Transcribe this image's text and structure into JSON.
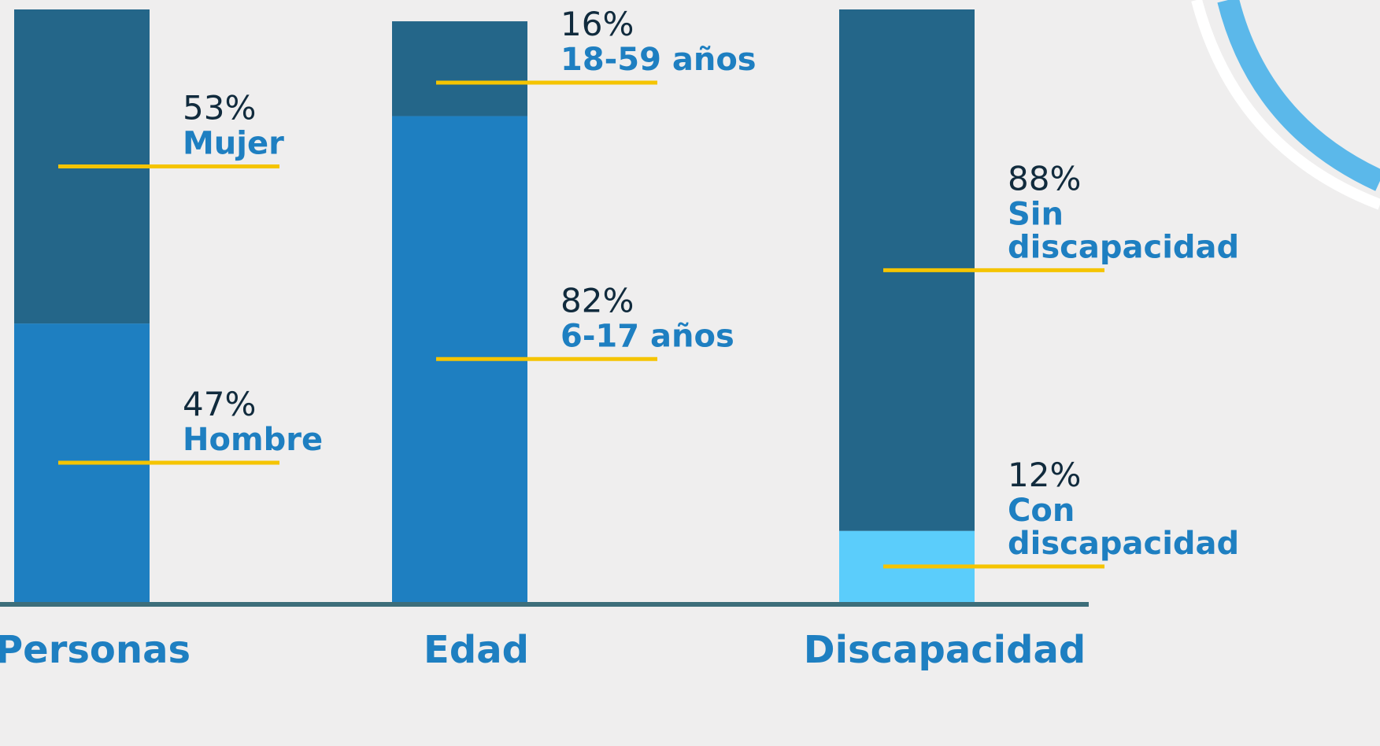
{
  "chart_data": {
    "type": "stacked-bar",
    "categories": [
      "Personas",
      "Edad",
      "Discapacidad"
    ],
    "ylim": [
      0,
      100
    ],
    "stacks": [
      {
        "names": [
          "Hombre",
          "Mujer"
        ],
        "values": [
          47,
          53
        ],
        "value_labels": [
          "47%",
          "53%"
        ],
        "colors": [
          "#1e7fc1",
          "#246689"
        ]
      },
      {
        "names": [
          "6-17 años",
          "18-59 años"
        ],
        "values": [
          82,
          16
        ],
        "value_labels": [
          "82%",
          "16%"
        ],
        "colors": [
          "#1e7fc1",
          "#246689"
        ]
      },
      {
        "names": [
          "Con discapacidad",
          "Sin discapacidad"
        ],
        "values": [
          12,
          88
        ],
        "value_labels": [
          "12%",
          "88%"
        ],
        "colors": [
          "#5bcdfb",
          "#246689"
        ]
      }
    ]
  }
}
